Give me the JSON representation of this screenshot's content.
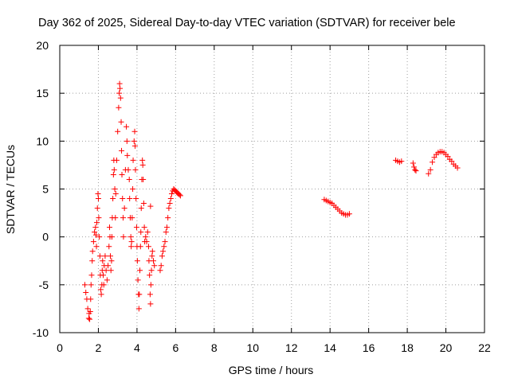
{
  "chart_data": {
    "type": "scatter",
    "title": "Day 362 of 2025, Sidereal Day-to-day VTEC variation (SDTVAR) for receiver bele",
    "xlabel": "GPS time / hours",
    "ylabel": "SDTVAR / TECUs",
    "xlim": [
      0,
      22
    ],
    "ylim": [
      -10,
      20
    ],
    "xticks": [
      "0",
      "2",
      "4",
      "6",
      "8",
      "10",
      "12",
      "14",
      "16",
      "18",
      "20",
      "22"
    ],
    "yticks": [
      "-10",
      "-5",
      "0",
      "5",
      "10",
      "15",
      "20"
    ],
    "grid": true,
    "marker": "+",
    "color": "#ff0000",
    "series": [
      {
        "name": "SDTVAR",
        "points": [
          [
            1.3,
            -5.0
          ],
          [
            1.35,
            -5.8
          ],
          [
            1.4,
            -6.5
          ],
          [
            1.45,
            -7.5
          ],
          [
            1.5,
            -8.5
          ],
          [
            1.52,
            -8.0
          ],
          [
            1.55,
            -8.6
          ],
          [
            1.58,
            -7.8
          ],
          [
            1.6,
            -6.5
          ],
          [
            1.62,
            -5.0
          ],
          [
            1.65,
            -4.0
          ],
          [
            1.68,
            -2.5
          ],
          [
            1.7,
            -1.5
          ],
          [
            1.75,
            -0.5
          ],
          [
            1.8,
            0.5
          ],
          [
            1.85,
            1.0
          ],
          [
            1.88,
            0.2
          ],
          [
            1.9,
            -1.0
          ],
          [
            1.92,
            1.5
          ],
          [
            1.95,
            3.0
          ],
          [
            1.98,
            4.5
          ],
          [
            2.0,
            4.0
          ],
          [
            2.02,
            2.0
          ],
          [
            2.05,
            0.0
          ],
          [
            2.08,
            -2.0
          ],
          [
            2.1,
            -4.0
          ],
          [
            2.12,
            -5.5
          ],
          [
            2.15,
            -6.0
          ],
          [
            2.18,
            -5.0
          ],
          [
            2.2,
            -3.5
          ],
          [
            2.22,
            -2.5
          ],
          [
            2.25,
            -4.0
          ],
          [
            2.28,
            -5.0
          ],
          [
            2.3,
            -3.0
          ],
          [
            2.35,
            -2.0
          ],
          [
            2.4,
            -3.5
          ],
          [
            2.45,
            -4.5
          ],
          [
            2.5,
            -3.0
          ],
          [
            2.55,
            -1.0
          ],
          [
            2.58,
            1.0
          ],
          [
            2.6,
            0.0
          ],
          [
            2.62,
            -2.0
          ],
          [
            2.65,
            -3.5
          ],
          [
            2.68,
            -2.5
          ],
          [
            2.7,
            0.0
          ],
          [
            2.72,
            2.0
          ],
          [
            2.75,
            4.0
          ],
          [
            2.78,
            6.5
          ],
          [
            2.8,
            8.0
          ],
          [
            2.82,
            7.0
          ],
          [
            2.85,
            5.0
          ],
          [
            2.88,
            2.0
          ],
          [
            2.9,
            4.5
          ],
          [
            2.95,
            8.0
          ],
          [
            3.0,
            11.0
          ],
          [
            3.05,
            13.5
          ],
          [
            3.08,
            15.0
          ],
          [
            3.1,
            16.0
          ],
          [
            3.12,
            15.5
          ],
          [
            3.15,
            14.5
          ],
          [
            3.18,
            12.0
          ],
          [
            3.2,
            9.0
          ],
          [
            3.22,
            6.5
          ],
          [
            3.25,
            4.0
          ],
          [
            3.28,
            2.0
          ],
          [
            3.3,
            0.0
          ],
          [
            3.35,
            3.0
          ],
          [
            3.4,
            7.0
          ],
          [
            3.45,
            11.5
          ],
          [
            3.48,
            10.0
          ],
          [
            3.5,
            8.5
          ],
          [
            3.55,
            7.0
          ],
          [
            3.6,
            6.0
          ],
          [
            3.62,
            4.0
          ],
          [
            3.65,
            2.0
          ],
          [
            3.68,
            0.0
          ],
          [
            3.7,
            -1.0
          ],
          [
            3.72,
            -0.5
          ],
          [
            3.75,
            2.0
          ],
          [
            3.78,
            5.0
          ],
          [
            3.8,
            8.0
          ],
          [
            3.85,
            10.0
          ],
          [
            3.88,
            11.0
          ],
          [
            3.9,
            9.5
          ],
          [
            3.92,
            7.0
          ],
          [
            3.95,
            4.0
          ],
          [
            3.98,
            1.0
          ],
          [
            4.0,
            -1.0
          ],
          [
            4.02,
            -2.5
          ],
          [
            4.05,
            -4.5
          ],
          [
            4.08,
            -6.0
          ],
          [
            4.1,
            -7.5
          ],
          [
            4.12,
            -6.0
          ],
          [
            4.15,
            -3.5
          ],
          [
            4.18,
            -1.0
          ],
          [
            4.2,
            0.5
          ],
          [
            4.22,
            3.0
          ],
          [
            4.25,
            6.0
          ],
          [
            4.28,
            8.0
          ],
          [
            4.3,
            7.5
          ],
          [
            4.32,
            6.0
          ],
          [
            4.35,
            3.5
          ],
          [
            4.38,
            1.0
          ],
          [
            4.4,
            -0.5
          ],
          [
            4.45,
            0.0
          ],
          [
            4.5,
            -0.5
          ],
          [
            4.55,
            0.5
          ],
          [
            4.6,
            -1.0
          ],
          [
            4.62,
            -2.5
          ],
          [
            4.65,
            -4.0
          ],
          [
            4.68,
            -6.0
          ],
          [
            4.7,
            -7.0
          ],
          [
            4.72,
            -5.0
          ],
          [
            4.75,
            -3.5
          ],
          [
            4.78,
            -2.0
          ],
          [
            4.8,
            -1.5
          ],
          [
            4.85,
            -2.5
          ],
          [
            4.9,
            -3.0
          ],
          [
            4.7,
            3.2
          ],
          [
            5.2,
            -3.5
          ],
          [
            5.25,
            -3.0
          ],
          [
            5.3,
            -2.0
          ],
          [
            5.35,
            -1.5
          ],
          [
            5.4,
            -1.0
          ],
          [
            5.45,
            -0.5
          ],
          [
            5.5,
            0.5
          ],
          [
            5.55,
            1.0
          ],
          [
            5.6,
            2.0
          ],
          [
            5.65,
            3.0
          ],
          [
            5.7,
            3.5
          ],
          [
            5.75,
            4.0
          ],
          [
            5.8,
            4.5
          ],
          [
            5.85,
            4.8
          ],
          [
            5.9,
            5.0
          ],
          [
            5.95,
            4.9
          ],
          [
            6.0,
            4.8
          ],
          [
            6.05,
            4.7
          ],
          [
            6.1,
            4.6
          ],
          [
            6.15,
            4.5
          ],
          [
            6.2,
            4.4
          ],
          [
            6.25,
            4.3
          ],
          [
            13.7,
            3.9
          ],
          [
            13.8,
            3.8
          ],
          [
            13.9,
            3.7
          ],
          [
            14.0,
            3.6
          ],
          [
            14.1,
            3.5
          ],
          [
            14.2,
            3.3
          ],
          [
            14.3,
            3.1
          ],
          [
            14.4,
            2.9
          ],
          [
            14.5,
            2.7
          ],
          [
            14.6,
            2.5
          ],
          [
            14.7,
            2.4
          ],
          [
            14.8,
            2.3
          ],
          [
            14.9,
            2.3
          ],
          [
            15.0,
            2.4
          ],
          [
            17.4,
            8.0
          ],
          [
            17.5,
            7.9
          ],
          [
            17.6,
            7.8
          ],
          [
            17.7,
            7.9
          ],
          [
            18.3,
            7.7
          ],
          [
            18.35,
            7.3
          ],
          [
            18.4,
            7.0
          ],
          [
            18.45,
            6.9
          ],
          [
            19.1,
            6.6
          ],
          [
            19.2,
            7.0
          ],
          [
            19.3,
            7.8
          ],
          [
            19.4,
            8.3
          ],
          [
            19.5,
            8.6
          ],
          [
            19.6,
            8.8
          ],
          [
            19.7,
            8.9
          ],
          [
            19.8,
            8.9
          ],
          [
            19.9,
            8.8
          ],
          [
            20.0,
            8.6
          ],
          [
            20.1,
            8.4
          ],
          [
            20.2,
            8.1
          ],
          [
            20.3,
            7.9
          ],
          [
            20.4,
            7.6
          ],
          [
            20.5,
            7.4
          ],
          [
            20.6,
            7.2
          ]
        ]
      }
    ]
  }
}
